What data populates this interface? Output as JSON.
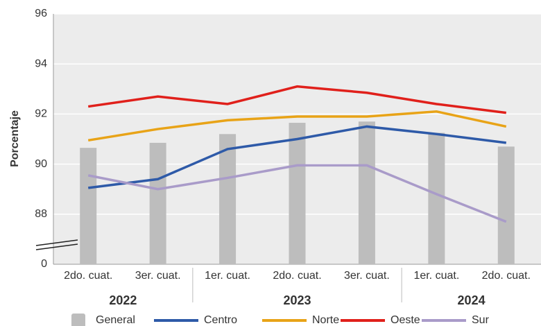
{
  "chart_data": {
    "type": "line",
    "y_label": "Porcentaje",
    "categories": [
      "2do. cuat.",
      "3er. cuat.",
      "1er. cuat.",
      "2do. cuat.",
      "3er. cuat.",
      "1er. cuat.",
      "2do. cuat."
    ],
    "groups": [
      {
        "name": "2022",
        "count": 2
      },
      {
        "name": "2023",
        "count": 3
      },
      {
        "name": "2024",
        "count": 2
      }
    ],
    "bar_series": {
      "name": "General",
      "color": "#bdbdbd",
      "values": [
        90.65,
        90.85,
        91.2,
        91.65,
        91.7,
        91.25,
        90.7
      ]
    },
    "series": [
      {
        "name": "Centro",
        "color": "#2e5aa8",
        "values": [
          89.05,
          89.4,
          90.6,
          91.0,
          91.5,
          91.2,
          90.85
        ]
      },
      {
        "name": "Norte",
        "color": "#e8a317",
        "values": [
          90.95,
          91.4,
          91.75,
          91.9,
          91.9,
          92.1,
          91.5
        ]
      },
      {
        "name": "Oeste",
        "color": "#e0201b",
        "values": [
          92.3,
          92.7,
          92.4,
          93.1,
          92.85,
          92.4,
          92.05
        ]
      },
      {
        "name": "Sur",
        "color": "#a99bc9",
        "values": [
          89.55,
          89.0,
          89.45,
          89.95,
          89.95,
          88.8,
          87.7
        ]
      }
    ],
    "ylim": [
      0,
      96
    ],
    "y_break": [
      0,
      86
    ],
    "yticks": [
      0,
      88,
      90,
      92,
      94,
      96
    ],
    "grid": true,
    "legend": "bottom"
  }
}
